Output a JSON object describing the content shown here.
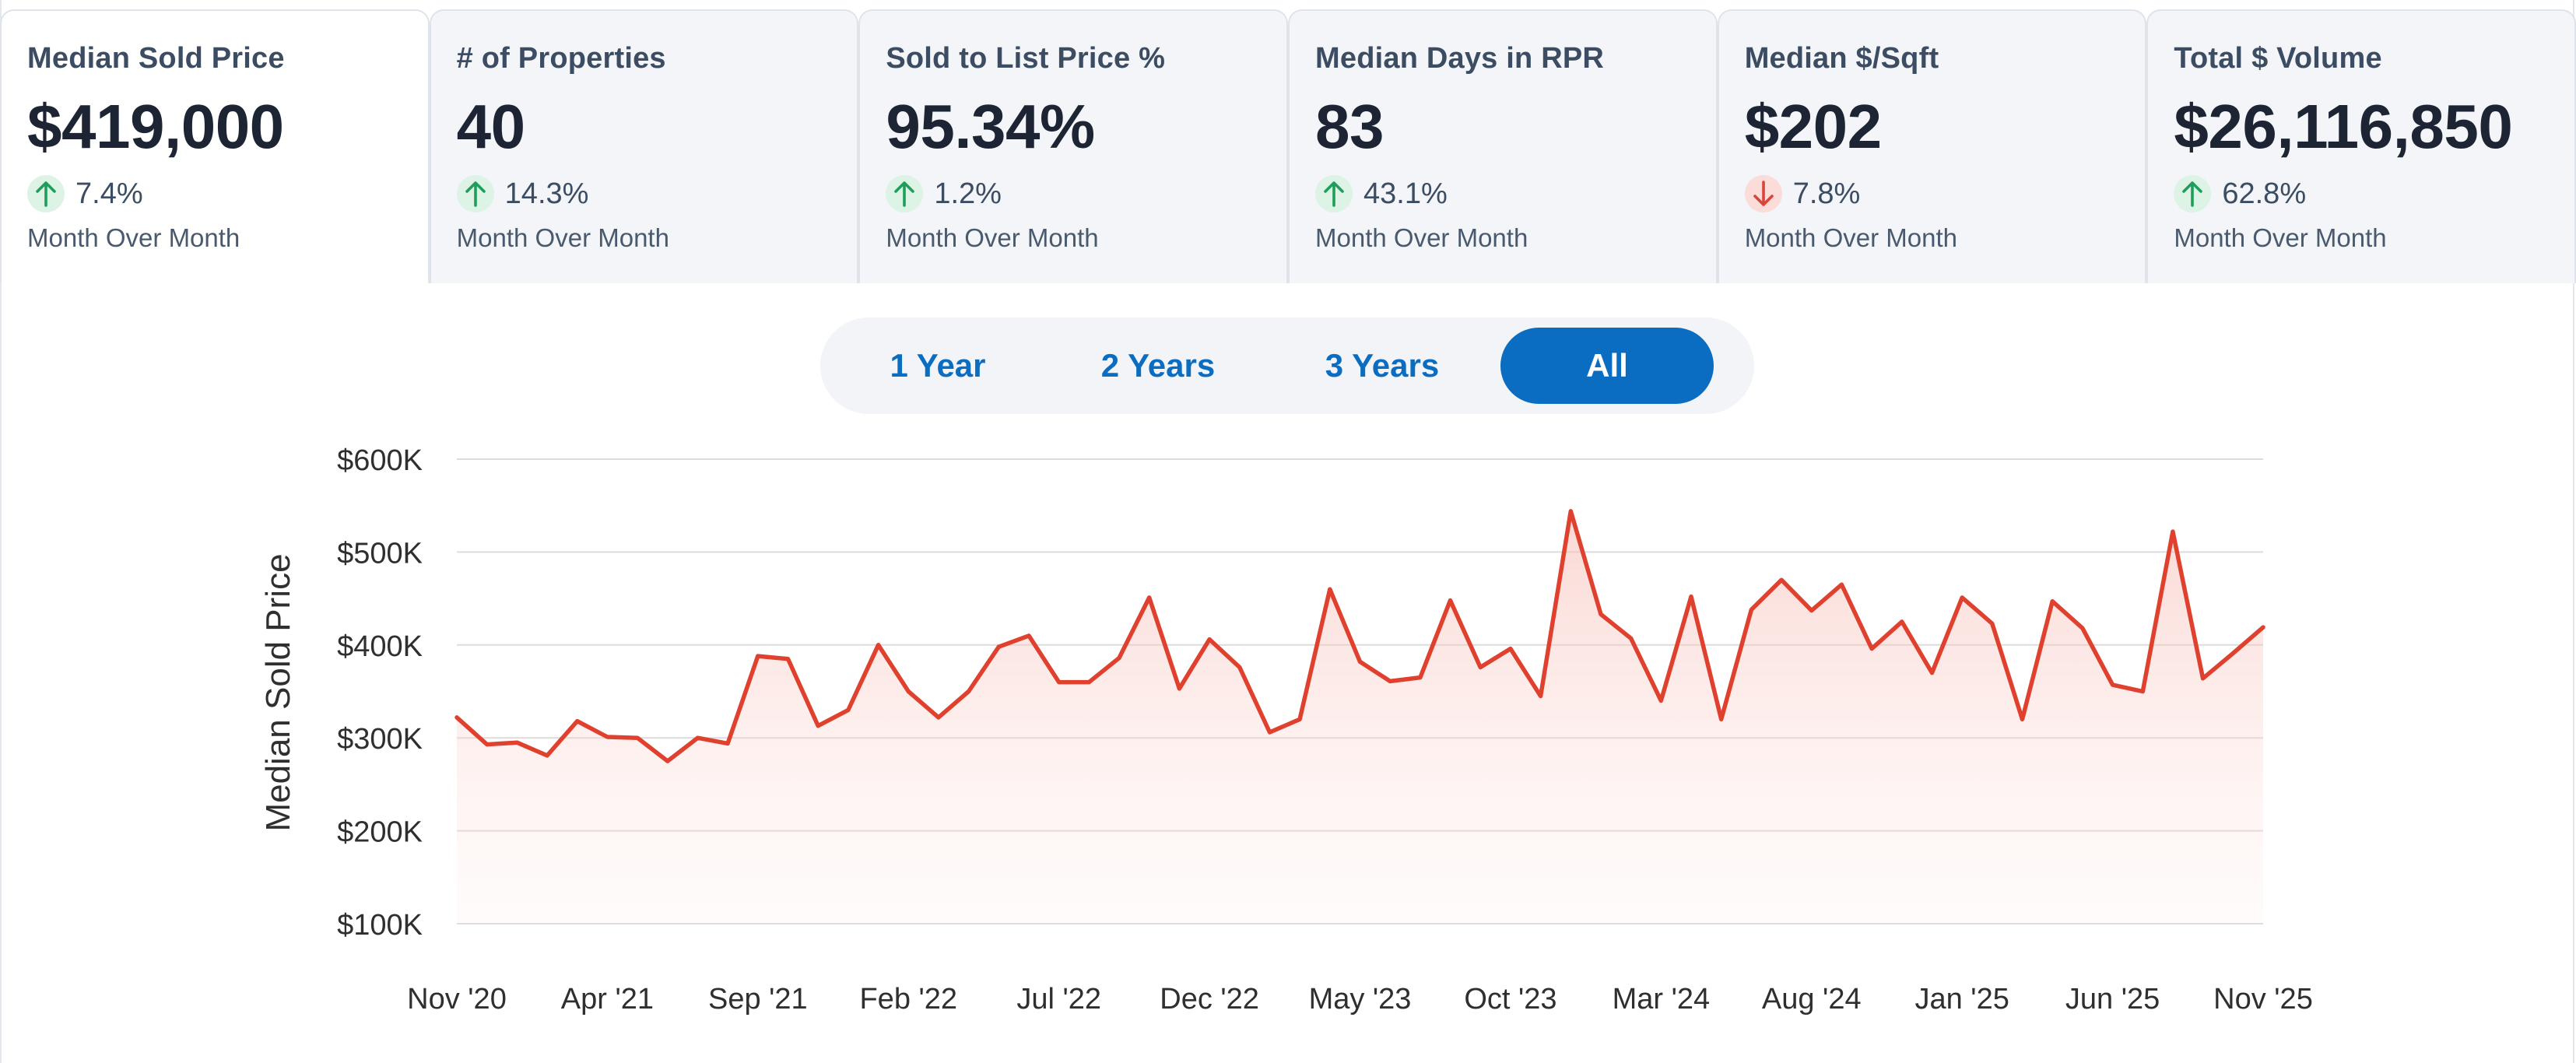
{
  "cards": [
    {
      "title": "Median Sold Price",
      "value": "$419,000",
      "direction": "up",
      "change": "7.4%",
      "caption": "Month Over Month",
      "active": true
    },
    {
      "title": "# of Properties",
      "value": "40",
      "direction": "up",
      "change": "14.3%",
      "caption": "Month Over Month"
    },
    {
      "title": "Sold to List Price %",
      "value": "95.34%",
      "direction": "up",
      "change": "1.2%",
      "caption": "Month Over Month"
    },
    {
      "title": "Median Days in RPR",
      "value": "83",
      "direction": "up",
      "change": "43.1%",
      "caption": "Month Over Month"
    },
    {
      "title": "Median $/Sqft",
      "value": "$202",
      "direction": "down",
      "change": "7.8%",
      "caption": "Month Over Month"
    },
    {
      "title": "Total $ Volume",
      "value": "$26,116,850",
      "direction": "up",
      "change": "62.8%",
      "caption": "Month Over Month"
    }
  ],
  "range_selector": {
    "options": [
      "1 Year",
      "2 Years",
      "3 Years",
      "All"
    ],
    "selected": "All"
  },
  "colors": {
    "accent": "#0a6dc2",
    "line": "#e0412f",
    "up": "#1e9e5a",
    "down": "#d9453b"
  },
  "chart_data": {
    "type": "area",
    "ylabel": "Median Sold Price",
    "ylim": [
      100000,
      600000
    ],
    "yticks": [
      100000,
      200000,
      300000,
      400000,
      500000,
      600000
    ],
    "ytick_labels": [
      "$100K",
      "$200K",
      "$300K",
      "$400K",
      "$500K",
      "$600K"
    ],
    "xtick_labels": [
      "Nov '20",
      "Apr '21",
      "Sep '21",
      "Feb '22",
      "Jul '22",
      "Dec '22",
      "May '23",
      "Oct '23",
      "Mar '24",
      "Aug '24",
      "Jan '25",
      "Jun '25",
      "Nov '25"
    ],
    "xticks_month_index": [
      0,
      5,
      10,
      15,
      20,
      25,
      30,
      35,
      40,
      45,
      50,
      55,
      60
    ],
    "grid": true,
    "legend": "none",
    "series": [
      {
        "x": [
          "Nov '20",
          "Dec '20",
          "Jan '21",
          "Feb '21",
          "Mar '21",
          "Apr '21",
          "May '21",
          "Jun '21",
          "Jul '21",
          "Aug '21",
          "Sep '21",
          "Oct '21",
          "Nov '21",
          "Dec '21",
          "Jan '22",
          "Feb '22",
          "Mar '22",
          "Apr '22",
          "May '22",
          "Jun '22",
          "Jul '22",
          "Aug '22",
          "Sep '22",
          "Oct '22",
          "Nov '22",
          "Dec '22",
          "Jan '23",
          "Feb '23",
          "Mar '23",
          "Apr '23",
          "May '23",
          "Jun '23",
          "Jul '23",
          "Aug '23",
          "Sep '23",
          "Oct '23",
          "Nov '23",
          "Dec '23",
          "Jan '24",
          "Feb '24",
          "Mar '24",
          "Apr '24",
          "May '24",
          "Jun '24",
          "Jul '24",
          "Aug '24",
          "Sep '24",
          "Oct '24",
          "Nov '24",
          "Dec '24",
          "Jan '25",
          "Feb '25",
          "Mar '25",
          "Apr '25",
          "May '25",
          "Jun '25",
          "Jul '25",
          "Aug '25",
          "Sep '25",
          "Oct '25",
          "Nov '25"
        ],
        "values": [
          322000,
          293000,
          295000,
          281000,
          318000,
          301000,
          300000,
          275000,
          300000,
          294000,
          388000,
          385000,
          313000,
          330000,
          400000,
          350000,
          322000,
          350000,
          398000,
          410000,
          360000,
          360000,
          386000,
          451000,
          353000,
          406000,
          376000,
          306000,
          320000,
          460000,
          382000,
          361000,
          365000,
          448000,
          376000,
          396000,
          345000,
          544000,
          433000,
          407000,
          340000,
          452000,
          320000,
          438000,
          470000,
          437000,
          465000,
          396000,
          425000,
          370000,
          451000,
          423000,
          320000,
          447000,
          418000,
          357000,
          350000,
          522000,
          364000,
          391000,
          419000
        ]
      }
    ]
  }
}
